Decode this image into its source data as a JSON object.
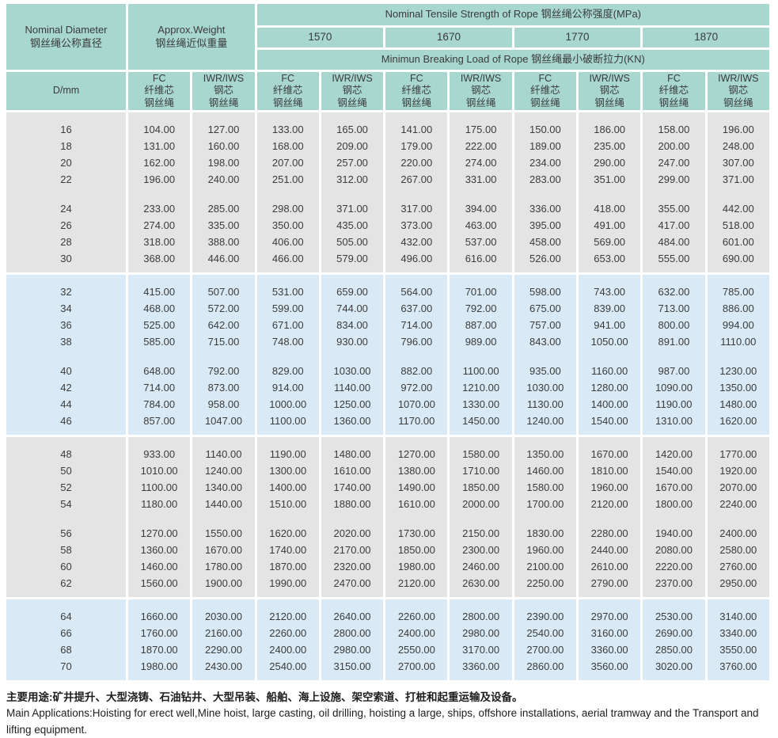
{
  "colors": {
    "header_teal": "#a7d7ce",
    "band_gray": "#e4e4e4",
    "band_blue": "#d9eaf6"
  },
  "table": {
    "header": {
      "nominal_diameter": "Nominal Diameter\n钢丝绳公称直径",
      "approx_weight": "Approx.Weight\n钢丝绳近似重量",
      "tensile_strength_title": "Nominal Tensile Strength of Rope  钢丝绳公称强度(MPa)",
      "strength_grades": [
        "1570",
        "1670",
        "1770",
        "1870"
      ],
      "breaking_load_title": "Minimun Breaking Load of Rope  钢丝绳最小破断拉力(KN)",
      "diameter_unit_label": "D/mm",
      "fc_column": "FC\n纤维芯\n钢丝绳",
      "iwr_column": "IWR/IWS\n钢芯\n钢丝绳"
    },
    "bands": [
      {
        "shade": "gray",
        "groups": [
          [
            [
              "16",
              "104.00",
              "127.00",
              "133.00",
              "165.00",
              "141.00",
              "175.00",
              "150.00",
              "186.00",
              "158.00",
              "196.00"
            ],
            [
              "18",
              "131.00",
              "160.00",
              "168.00",
              "209.00",
              "179.00",
              "222.00",
              "189.00",
              "235.00",
              "200.00",
              "248.00"
            ],
            [
              "20",
              "162.00",
              "198.00",
              "207.00",
              "257.00",
              "220.00",
              "274.00",
              "234.00",
              "290.00",
              "247.00",
              "307.00"
            ],
            [
              "22",
              "196.00",
              "240.00",
              "251.00",
              "312.00",
              "267.00",
              "331.00",
              "283.00",
              "351.00",
              "299.00",
              "371.00"
            ]
          ],
          [
            [
              "24",
              "233.00",
              "285.00",
              "298.00",
              "371.00",
              "317.00",
              "394.00",
              "336.00",
              "418.00",
              "355.00",
              "442.00"
            ],
            [
              "26",
              "274.00",
              "335.00",
              "350.00",
              "435.00",
              "373.00",
              "463.00",
              "395.00",
              "491.00",
              "417.00",
              "518.00"
            ],
            [
              "28",
              "318.00",
              "388.00",
              "406.00",
              "505.00",
              "432.00",
              "537.00",
              "458.00",
              "569.00",
              "484.00",
              "601.00"
            ],
            [
              "30",
              "368.00",
              "446.00",
              "466.00",
              "579.00",
              "496.00",
              "616.00",
              "526.00",
              "653.00",
              "555.00",
              "690.00"
            ]
          ]
        ]
      },
      {
        "shade": "blue",
        "groups": [
          [
            [
              "32",
              "415.00",
              "507.00",
              "531.00",
              "659.00",
              "564.00",
              "701.00",
              "598.00",
              "743.00",
              "632.00",
              "785.00"
            ],
            [
              "34",
              "468.00",
              "572.00",
              "599.00",
              "744.00",
              "637.00",
              "792.00",
              "675.00",
              "839.00",
              "713.00",
              "886.00"
            ],
            [
              "36",
              "525.00",
              "642.00",
              "671.00",
              "834.00",
              "714.00",
              "887.00",
              "757.00",
              "941.00",
              "800.00",
              "994.00"
            ],
            [
              "38",
              "585.00",
              "715.00",
              "748.00",
              "930.00",
              "796.00",
              "989.00",
              "843.00",
              "1050.00",
              "891.00",
              "1110.00"
            ]
          ],
          [
            [
              "40",
              "648.00",
              "792.00",
              "829.00",
              "1030.00",
              "882.00",
              "1100.00",
              "935.00",
              "1160.00",
              "987.00",
              "1230.00"
            ],
            [
              "42",
              "714.00",
              "873.00",
              "914.00",
              "1140.00",
              "972.00",
              "1210.00",
              "1030.00",
              "1280.00",
              "1090.00",
              "1350.00"
            ],
            [
              "44",
              "784.00",
              "958.00",
              "1000.00",
              "1250.00",
              "1070.00",
              "1330.00",
              "1130.00",
              "1400.00",
              "1190.00",
              "1480.00"
            ],
            [
              "46",
              "857.00",
              "1047.00",
              "1100.00",
              "1360.00",
              "1170.00",
              "1450.00",
              "1240.00",
              "1540.00",
              "1310.00",
              "1620.00"
            ]
          ]
        ]
      },
      {
        "shade": "gray",
        "groups": [
          [
            [
              "48",
              "933.00",
              "1140.00",
              "1190.00",
              "1480.00",
              "1270.00",
              "1580.00",
              "1350.00",
              "1670.00",
              "1420.00",
              "1770.00"
            ],
            [
              "50",
              "1010.00",
              "1240.00",
              "1300.00",
              "1610.00",
              "1380.00",
              "1710.00",
              "1460.00",
              "1810.00",
              "1540.00",
              "1920.00"
            ],
            [
              "52",
              "1100.00",
              "1340.00",
              "1400.00",
              "1740.00",
              "1490.00",
              "1850.00",
              "1580.00",
              "1960.00",
              "1670.00",
              "2070.00"
            ],
            [
              "54",
              "1180.00",
              "1440.00",
              "1510.00",
              "1880.00",
              "1610.00",
              "2000.00",
              "1700.00",
              "2120.00",
              "1800.00",
              "2240.00"
            ]
          ],
          [
            [
              "56",
              "1270.00",
              "1550.00",
              "1620.00",
              "2020.00",
              "1730.00",
              "2150.00",
              "1830.00",
              "2280.00",
              "1940.00",
              "2400.00"
            ],
            [
              "58",
              "1360.00",
              "1670.00",
              "1740.00",
              "2170.00",
              "1850.00",
              "2300.00",
              "1960.00",
              "2440.00",
              "2080.00",
              "2580.00"
            ],
            [
              "60",
              "1460.00",
              "1780.00",
              "1870.00",
              "2320.00",
              "1980.00",
              "2460.00",
              "2100.00",
              "2610.00",
              "2220.00",
              "2760.00"
            ],
            [
              "62",
              "1560.00",
              "1900.00",
              "1990.00",
              "2470.00",
              "2120.00",
              "2630.00",
              "2250.00",
              "2790.00",
              "2370.00",
              "2950.00"
            ]
          ]
        ]
      },
      {
        "shade": "blue",
        "groups": [
          [
            [
              "64",
              "1660.00",
              "2030.00",
              "2120.00",
              "2640.00",
              "2260.00",
              "2800.00",
              "2390.00",
              "2970.00",
              "2530.00",
              "3140.00"
            ],
            [
              "66",
              "1760.00",
              "2160.00",
              "2260.00",
              "2800.00",
              "2400.00",
              "2980.00",
              "2540.00",
              "3160.00",
              "2690.00",
              "3340.00"
            ],
            [
              "68",
              "1870.00",
              "2290.00",
              "2400.00",
              "2980.00",
              "2550.00",
              "3170.00",
              "2700.00",
              "3360.00",
              "2850.00",
              "3550.00"
            ],
            [
              "70",
              "1980.00",
              "2430.00",
              "2540.00",
              "3150.00",
              "2700.00",
              "3360.00",
              "2860.00",
              "3560.00",
              "3020.00",
              "3760.00"
            ]
          ]
        ]
      }
    ]
  },
  "footer": {
    "zh": "主要用途:矿井提升、大型浇铸、石油钻井、大型吊装、船舶、海上设施、架空索道、打桩和起重运输及设备。",
    "en": "Main Applications:Hoisting for erect well,Mine hoist, large casting, oil drilling, hoisting a large, ships, offshore installations, aerial tramway and the Transport and lifting equipment."
  }
}
